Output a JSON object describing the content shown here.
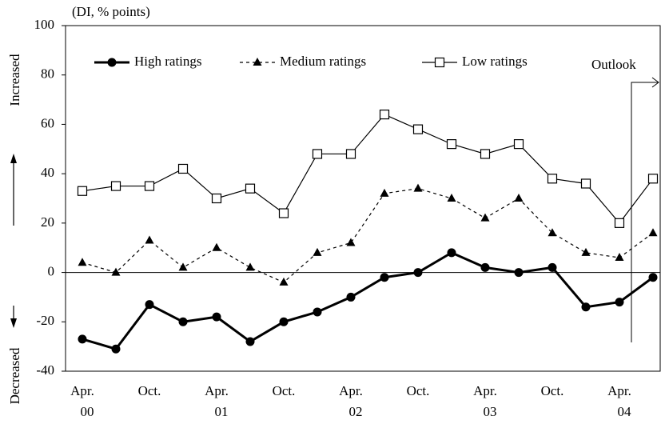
{
  "chart_data": {
    "type": "line",
    "y_unit_label": "(DI, % points)",
    "annotations": {
      "up": "Increased",
      "down": "Decreased",
      "outlook": "Outlook"
    },
    "categories": [
      [
        "Apr.",
        "00"
      ],
      null,
      [
        "Oct."
      ],
      null,
      [
        "Apr.",
        "01"
      ],
      null,
      [
        "Oct."
      ],
      null,
      [
        "Apr.",
        "02"
      ],
      null,
      [
        "Oct."
      ],
      null,
      [
        "Apr.",
        "03"
      ],
      null,
      [
        "Oct."
      ],
      null,
      [
        "Apr.",
        "04"
      ],
      null
    ],
    "series": [
      {
        "name": "High ratings",
        "color": "#000000",
        "marker": "circle",
        "dash": "solid",
        "values": [
          -27,
          -31,
          -13,
          -20,
          -18,
          -28,
          -20,
          -16,
          -10,
          -2,
          0,
          8,
          2,
          0,
          2,
          -14,
          -12,
          -2
        ]
      },
      {
        "name": "Medium ratings",
        "color": "#000000",
        "marker": "triangle",
        "dash": "dotted",
        "values": [
          4,
          0,
          13,
          2,
          10,
          2,
          -4,
          8,
          12,
          32,
          34,
          30,
          22,
          30,
          16,
          8,
          6,
          16
        ]
      },
      {
        "name": "Low ratings",
        "color": "#000000",
        "marker": "square",
        "dash": "thin",
        "values": [
          33,
          35,
          35,
          42,
          30,
          34,
          24,
          48,
          48,
          64,
          58,
          52,
          48,
          52,
          38,
          36,
          20,
          38
        ]
      }
    ],
    "ylim": [
      -40,
      100
    ],
    "yticks": [
      -40,
      -20,
      0,
      20,
      40,
      60,
      80,
      100
    ]
  }
}
